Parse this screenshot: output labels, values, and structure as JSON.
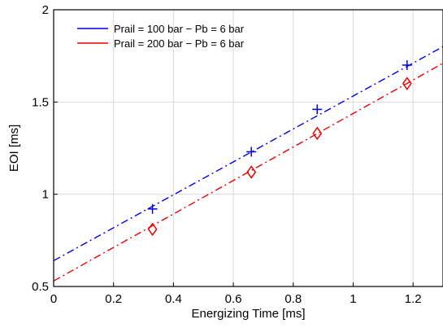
{
  "chart_data": {
    "type": "line",
    "title": "",
    "xlabel": "Energizing Time [ms]",
    "ylabel": "EOI [ms]",
    "xlim": [
      0,
      1.3
    ],
    "ylim": [
      0.5,
      2
    ],
    "xticks": [
      0,
      0.2,
      0.4,
      0.6,
      0.8,
      1,
      1.2
    ],
    "xtick_labels": [
      "0",
      "0.2",
      "0.4",
      "0.6",
      "0.8",
      "1",
      "1.2"
    ],
    "yticks": [
      0.5,
      1,
      1.5,
      2
    ],
    "ytick_labels": [
      "0.5",
      "1",
      "1.5",
      "2"
    ],
    "grid": true,
    "legend_position": "top-left",
    "series": [
      {
        "name": "Prail = 100 bar − Pb = 6 bar",
        "color": "#0000ee",
        "marker": "plus",
        "line_style": "dash-dot",
        "points": {
          "x": [
            0.33,
            0.66,
            0.88,
            1.18
          ],
          "y": [
            0.92,
            1.23,
            1.46,
            1.7
          ]
        },
        "fit_line": {
          "x": [
            0,
            1.3
          ],
          "y": [
            0.64,
            1.8
          ]
        }
      },
      {
        "name": "Prail = 200 bar − Pb = 6 bar",
        "color": "#ee0000",
        "marker": "diamond",
        "line_style": "dash-dot",
        "points": {
          "x": [
            0.33,
            0.66,
            0.88,
            1.18
          ],
          "y": [
            0.81,
            1.12,
            1.33,
            1.6
          ]
        },
        "fit_line": {
          "x": [
            0,
            1.3
          ],
          "y": [
            0.53,
            1.71
          ]
        }
      }
    ]
  }
}
